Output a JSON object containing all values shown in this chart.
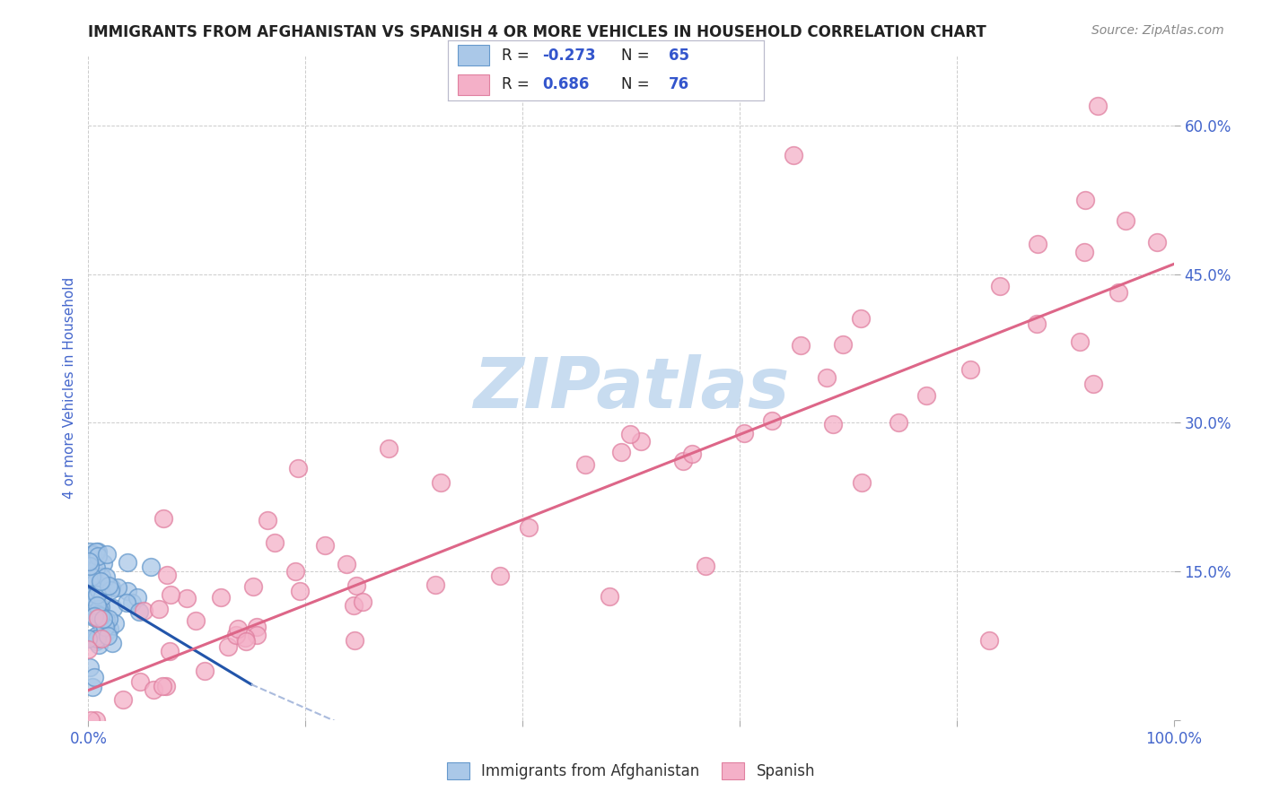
{
  "title": "IMMIGRANTS FROM AFGHANISTAN VS SPANISH 4 OR MORE VEHICLES IN HOUSEHOLD CORRELATION CHART",
  "source": "Source: ZipAtlas.com",
  "ylabel": "4 or more Vehicles in Household",
  "xlim": [
    0.0,
    100.0
  ],
  "ylim": [
    0.0,
    67.0
  ],
  "yticks": [
    0.0,
    15.0,
    30.0,
    45.0,
    60.0
  ],
  "xticks": [
    0.0,
    20.0,
    40.0,
    60.0,
    80.0,
    100.0
  ],
  "xtick_labels": [
    "0.0%",
    "",
    "",
    "",
    "",
    "100.0%"
  ],
  "ytick_labels": [
    "",
    "15.0%",
    "30.0%",
    "45.0%",
    "60.0%"
  ],
  "blue_R": "-0.273",
  "blue_N": "65",
  "pink_R": "0.686",
  "pink_N": "76",
  "blue_line_x": [
    0.0,
    20.0
  ],
  "blue_line_y": [
    13.5,
    0.3
  ],
  "pink_line_x": [
    0.0,
    100.0
  ],
  "pink_line_y": [
    3.0,
    46.0
  ],
  "watermark": "ZIPatlas",
  "watermark_color": "#c8dcf0",
  "bg_color": "#ffffff",
  "grid_color": "#cccccc",
  "blue_dot_color": "#aac8e8",
  "blue_dot_edge": "#6699cc",
  "pink_dot_color": "#f4b0c8",
  "pink_dot_edge": "#e080a0",
  "blue_line_color": "#2255aa",
  "blue_line_dash_color": "#aabbdd",
  "pink_line_color": "#dd6688",
  "title_color": "#222222",
  "right_tick_color": "#4466cc",
  "source_color": "#888888"
}
